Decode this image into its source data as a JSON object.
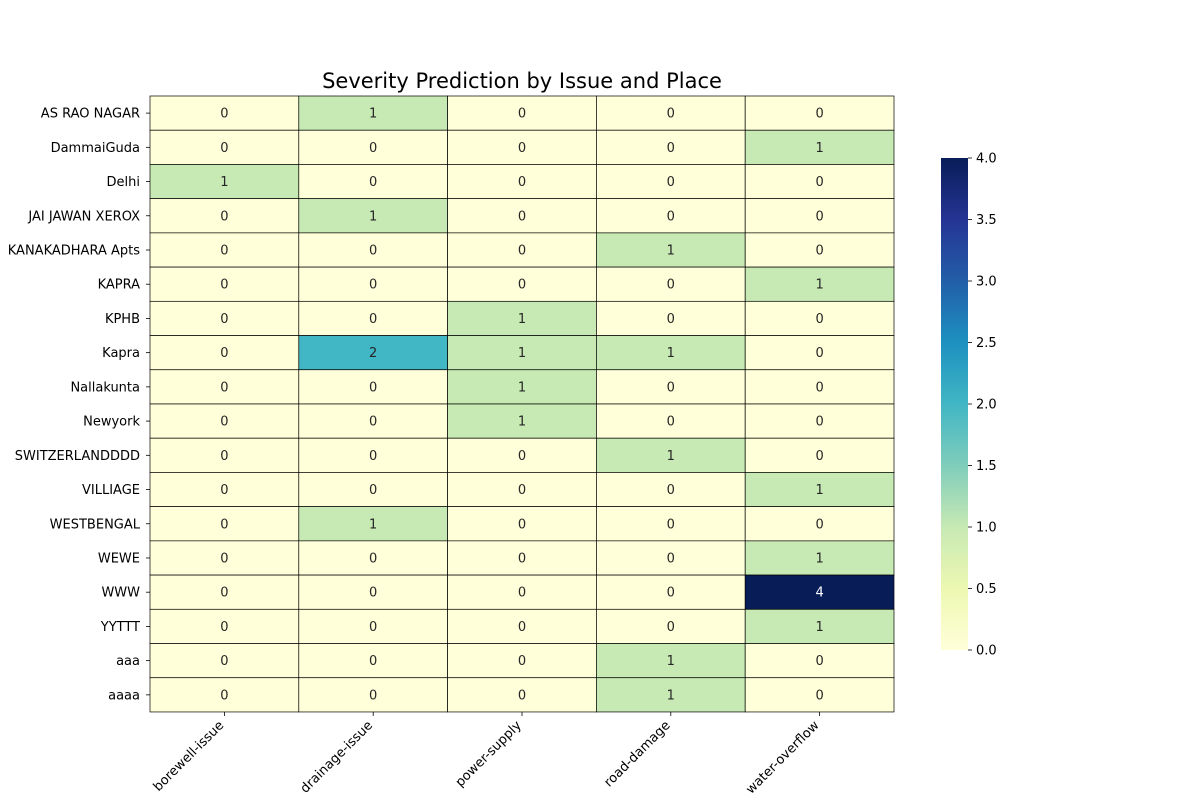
{
  "chart_data": {
    "type": "heatmap",
    "title": "Severity Prediction by Issue and Place",
    "xlabel": "",
    "ylabel": "",
    "x_categories": [
      "borewell-issue",
      "drainage-issue",
      "power-supply",
      "road-damage",
      "water-overflow"
    ],
    "y_categories": [
      "AS RAO NAGAR",
      "DammaiGuda",
      "Delhi",
      "JAI JAWAN XEROX",
      "KANAKADHARA  Apts",
      "KAPRA",
      "KPHB",
      "Kapra",
      "Nallakunta",
      "Newyork",
      "SWITZERLANDDDD",
      "VILLIAGE",
      "WESTBENGAL",
      "WEWE",
      "WWW",
      "YYTTT",
      "aaa",
      "aaaa"
    ],
    "values": [
      [
        0,
        1,
        0,
        0,
        0
      ],
      [
        0,
        0,
        0,
        0,
        1
      ],
      [
        1,
        0,
        0,
        0,
        0
      ],
      [
        0,
        1,
        0,
        0,
        0
      ],
      [
        0,
        0,
        0,
        1,
        0
      ],
      [
        0,
        0,
        0,
        0,
        1
      ],
      [
        0,
        0,
        1,
        0,
        0
      ],
      [
        0,
        2,
        1,
        1,
        0
      ],
      [
        0,
        0,
        1,
        0,
        0
      ],
      [
        0,
        0,
        1,
        0,
        0
      ],
      [
        0,
        0,
        0,
        1,
        0
      ],
      [
        0,
        0,
        0,
        0,
        1
      ],
      [
        0,
        1,
        0,
        0,
        0
      ],
      [
        0,
        0,
        0,
        0,
        1
      ],
      [
        0,
        0,
        0,
        0,
        4
      ],
      [
        0,
        0,
        0,
        0,
        1
      ],
      [
        0,
        0,
        0,
        1,
        0
      ],
      [
        0,
        0,
        0,
        1,
        0
      ]
    ],
    "annotated": true,
    "colormap": "YlGnBu",
    "vmin": 0,
    "vmax": 4,
    "colorbar_ticks": [
      "0.0",
      "0.5",
      "1.0",
      "1.5",
      "2.0",
      "2.5",
      "3.0",
      "3.5",
      "4.0"
    ],
    "grid": true,
    "colors": {
      "cell_border": "#000000",
      "colormap_stops": [
        "#ffffd9",
        "#edf8b1",
        "#c7e9b4",
        "#7fcdbb",
        "#41b6c4",
        "#1d91c0",
        "#225ea8",
        "#253494",
        "#081d58"
      ]
    }
  }
}
